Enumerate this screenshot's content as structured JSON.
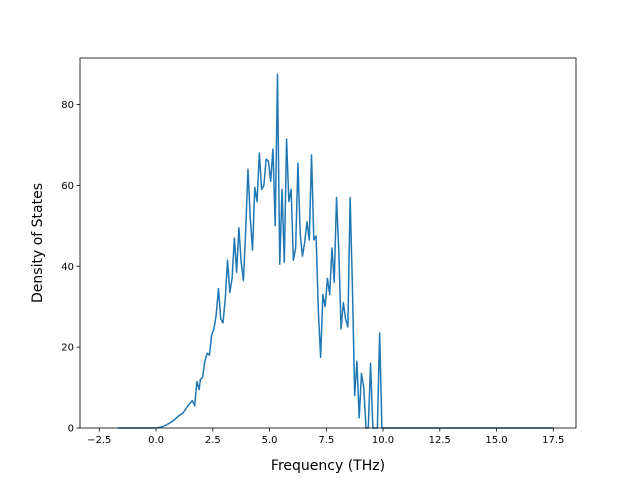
{
  "chart_data": {
    "type": "line",
    "title": "",
    "xlabel": "Frequency (THz)",
    "ylabel": "Density of States",
    "xlim": [
      -3.35,
      18.5
    ],
    "ylim": [
      0,
      91.5
    ],
    "grid": false,
    "legend": "none",
    "x_ticks": [
      -2.5,
      0.0,
      2.5,
      5.0,
      7.5,
      10.0,
      12.5,
      15.0,
      17.5
    ],
    "x_tick_labels": [
      "−2.5",
      "0.0",
      "2.5",
      "5.0",
      "7.5",
      "10.0",
      "12.5",
      "15.0",
      "17.5"
    ],
    "y_ticks": [
      0,
      20,
      40,
      60,
      80
    ],
    "y_tick_labels": [
      "0",
      "20",
      "40",
      "60",
      "80"
    ],
    "series": [
      {
        "color": "#1f77b4",
        "x": [
          -1.7,
          -1.0,
          0.0,
          0.2,
          0.4,
          0.6,
          0.8,
          1.0,
          1.2,
          1.4,
          1.6,
          1.7,
          1.8,
          1.9,
          1.95,
          2.05,
          2.15,
          2.25,
          2.35,
          2.45,
          2.55,
          2.65,
          2.75,
          2.85,
          2.95,
          3.05,
          3.15,
          3.25,
          3.35,
          3.45,
          3.55,
          3.65,
          3.75,
          3.85,
          3.95,
          4.05,
          4.15,
          4.25,
          4.35,
          4.45,
          4.55,
          4.65,
          4.75,
          4.85,
          4.95,
          5.05,
          5.15,
          5.25,
          5.35,
          5.45,
          5.55,
          5.65,
          5.75,
          5.85,
          5.95,
          6.05,
          6.15,
          6.25,
          6.35,
          6.45,
          6.55,
          6.65,
          6.75,
          6.85,
          6.95,
          7.05,
          7.15,
          7.25,
          7.35,
          7.45,
          7.55,
          7.65,
          7.75,
          7.85,
          7.95,
          8.05,
          8.15,
          8.25,
          8.35,
          8.45,
          8.55,
          8.65,
          8.75,
          8.85,
          8.95,
          9.05,
          9.15,
          9.25,
          9.35,
          9.45,
          9.55,
          9.65,
          9.75,
          9.85,
          9.95,
          10.05,
          10.15,
          10.5,
          12.5,
          15.0,
          17.5
        ],
        "y": [
          0,
          0,
          0,
          0.2,
          0.6,
          1.2,
          2.0,
          3.0,
          3.8,
          5.5,
          6.8,
          5.5,
          11.5,
          9.5,
          12.0,
          12.5,
          16.5,
          18.5,
          18.0,
          23.0,
          24.5,
          28.0,
          34.5,
          27.0,
          26.0,
          32.0,
          41.5,
          33.5,
          37.0,
          47.0,
          38.5,
          49.5,
          41.0,
          36.5,
          49.0,
          64.0,
          52.0,
          44.0,
          59.5,
          56.0,
          68.0,
          59.0,
          60.0,
          66.5,
          66.0,
          61.0,
          69.0,
          50.0,
          87.5,
          40.5,
          59.0,
          41.0,
          71.5,
          56.0,
          59.0,
          41.5,
          44.5,
          65.5,
          48.0,
          42.5,
          46.0,
          51.0,
          46.5,
          67.5,
          46.5,
          47.5,
          29.0,
          17.5,
          33.0,
          30.0,
          37.0,
          33.0,
          44.5,
          36.0,
          57.0,
          44.0,
          24.5,
          31.0,
          27.0,
          25.0,
          57.0,
          35.0,
          8.0,
          16.5,
          2.5,
          13.5,
          10.0,
          0.0,
          0.0,
          16.0,
          0.0,
          0.0,
          0.0,
          23.5,
          0.0,
          0.0,
          0.0,
          0.0,
          0.0,
          0.0,
          0.0
        ]
      }
    ]
  }
}
